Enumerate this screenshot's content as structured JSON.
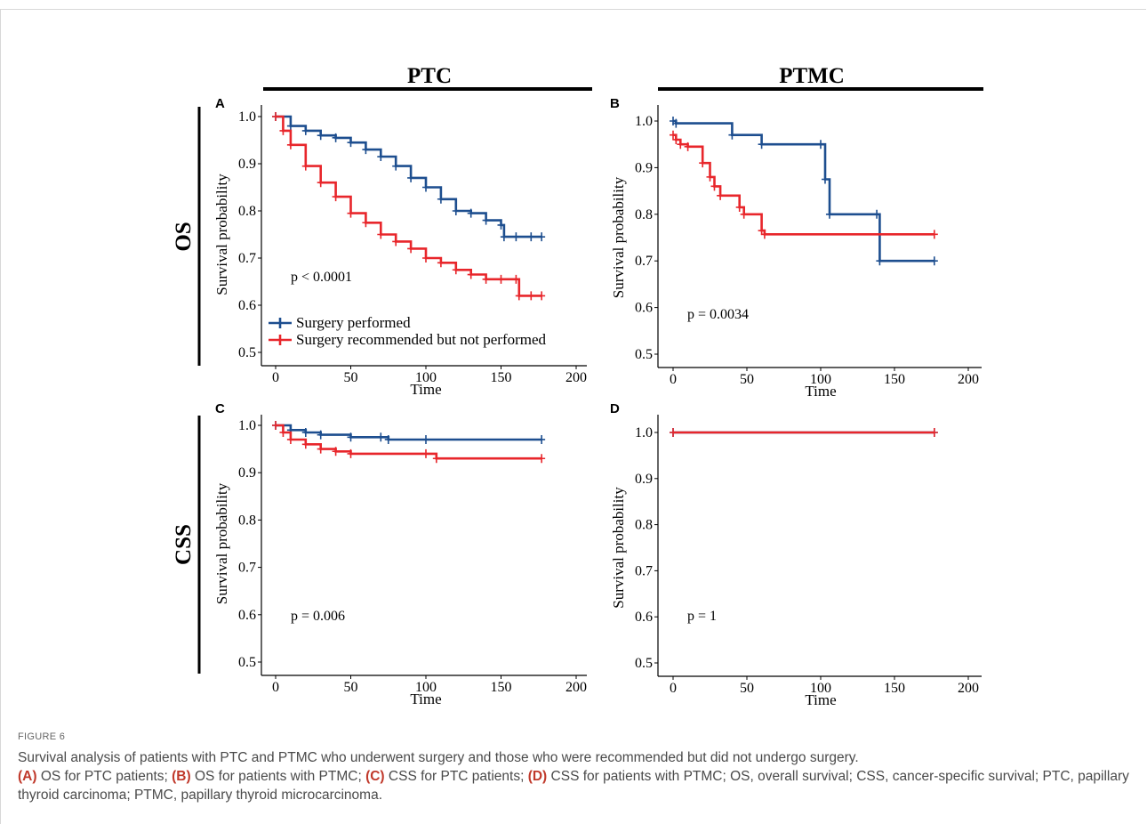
{
  "columns": [
    {
      "title": "PTC"
    },
    {
      "title": "PTMC"
    }
  ],
  "rows": [
    {
      "title": "OS"
    },
    {
      "title": "CSS"
    }
  ],
  "legend": {
    "items": [
      {
        "label": "Surgery performed",
        "color": "#1d4e8f"
      },
      {
        "label": "Surgery recommended but not performed",
        "color": "#e8262b"
      }
    ]
  },
  "chart_data": [
    {
      "type": "line",
      "panel": "A",
      "xlabel": "Time",
      "ylabel": "Survival probability",
      "xlim": [
        0,
        200
      ],
      "ylim": [
        0.5,
        1.0
      ],
      "xticks": [
        0,
        50,
        100,
        150,
        200
      ],
      "yticks": [
        0.5,
        0.6,
        0.7,
        0.8,
        0.9,
        1.0
      ],
      "annotation": "p < 0.0001",
      "series": [
        {
          "name": "Surgery performed",
          "color": "#1d4e8f",
          "x": [
            0,
            10,
            20,
            30,
            40,
            50,
            60,
            70,
            80,
            90,
            100,
            110,
            120,
            130,
            140,
            150,
            152,
            160,
            170,
            177
          ],
          "y": [
            1.0,
            0.98,
            0.97,
            0.96,
            0.955,
            0.945,
            0.93,
            0.915,
            0.895,
            0.87,
            0.85,
            0.825,
            0.8,
            0.795,
            0.78,
            0.77,
            0.745,
            0.745,
            0.745,
            0.745
          ]
        },
        {
          "name": "Surgery recommended but not performed",
          "color": "#e8262b",
          "x": [
            0,
            5,
            10,
            20,
            30,
            40,
            50,
            60,
            70,
            80,
            90,
            100,
            110,
            120,
            130,
            140,
            150,
            160,
            162,
            170,
            177
          ],
          "y": [
            1.0,
            0.97,
            0.94,
            0.895,
            0.86,
            0.83,
            0.795,
            0.775,
            0.75,
            0.735,
            0.72,
            0.7,
            0.69,
            0.675,
            0.665,
            0.655,
            0.655,
            0.655,
            0.62,
            0.62,
            0.62
          ]
        }
      ]
    },
    {
      "type": "line",
      "panel": "B",
      "xlabel": "Time",
      "ylabel": "Survival probability",
      "xlim": [
        0,
        200
      ],
      "ylim": [
        0.5,
        1.0
      ],
      "xticks": [
        0,
        50,
        100,
        150,
        200
      ],
      "yticks": [
        0.5,
        0.6,
        0.7,
        0.8,
        0.9,
        1.0
      ],
      "annotation": "p = 0.0034",
      "series": [
        {
          "name": "Surgery performed",
          "color": "#1d4e8f",
          "x": [
            0,
            2,
            40,
            60,
            100,
            103,
            106,
            138,
            140,
            177
          ],
          "y": [
            1.0,
            0.995,
            0.97,
            0.95,
            0.95,
            0.875,
            0.8,
            0.8,
            0.7,
            0.7
          ]
        },
        {
          "name": "Surgery recommended but not performed",
          "color": "#e8262b",
          "x": [
            0,
            2,
            5,
            10,
            20,
            25,
            28,
            32,
            45,
            48,
            60,
            62,
            177
          ],
          "y": [
            0.97,
            0.96,
            0.95,
            0.945,
            0.91,
            0.88,
            0.86,
            0.84,
            0.815,
            0.8,
            0.765,
            0.757,
            0.757
          ]
        }
      ]
    },
    {
      "type": "line",
      "panel": "C",
      "xlabel": "Time",
      "ylabel": "Survival probability",
      "xlim": [
        0,
        200
      ],
      "ylim": [
        0.5,
        1.0
      ],
      "xticks": [
        0,
        50,
        100,
        150,
        200
      ],
      "yticks": [
        0.5,
        0.6,
        0.7,
        0.8,
        0.9,
        1.0
      ],
      "annotation": "p = 0.006",
      "series": [
        {
          "name": "Surgery performed",
          "color": "#1d4e8f",
          "x": [
            0,
            10,
            20,
            30,
            50,
            70,
            75,
            100,
            177
          ],
          "y": [
            1.0,
            0.99,
            0.985,
            0.98,
            0.975,
            0.975,
            0.97,
            0.97,
            0.97
          ]
        },
        {
          "name": "Surgery recommended but not performed",
          "color": "#e8262b",
          "x": [
            0,
            5,
            10,
            20,
            30,
            40,
            50,
            100,
            107,
            177
          ],
          "y": [
            1.0,
            0.985,
            0.97,
            0.96,
            0.95,
            0.945,
            0.94,
            0.94,
            0.93,
            0.93
          ]
        }
      ]
    },
    {
      "type": "line",
      "panel": "D",
      "xlabel": "Time",
      "ylabel": "Survival probability",
      "xlim": [
        0,
        200
      ],
      "ylim": [
        0.5,
        1.0
      ],
      "xticks": [
        0,
        50,
        100,
        150,
        200
      ],
      "yticks": [
        0.5,
        0.6,
        0.7,
        0.8,
        0.9,
        1.0
      ],
      "annotation": "p = 1",
      "series": [
        {
          "name": "Surgery performed",
          "color": "#1d4e8f",
          "x": [
            0,
            177
          ],
          "y": [
            1.0,
            1.0
          ]
        },
        {
          "name": "Surgery recommended but not performed",
          "color": "#e8262b",
          "x": [
            0,
            177
          ],
          "y": [
            1.0,
            1.0
          ]
        }
      ]
    }
  ],
  "caption": {
    "label": "FIGURE 6",
    "text": "Survival analysis of patients with PTC and PTMC who underwent surgery and those who were recommended but did not undergo surgery.",
    "parts": [
      {
        "tag": "(A)",
        "text": " OS for PTC patients; "
      },
      {
        "tag": "(B)",
        "text": " OS for patients with PTMC; "
      },
      {
        "tag": "(C)",
        "text": " CSS for PTC patients; "
      },
      {
        "tag": "(D)",
        "text": " CSS for patients with PTMC; OS, overall survival; CSS, cancer-specific survival; PTC, papillary thyroid carcinoma; PTMC, papillary thyroid microcarcinoma."
      }
    ]
  }
}
